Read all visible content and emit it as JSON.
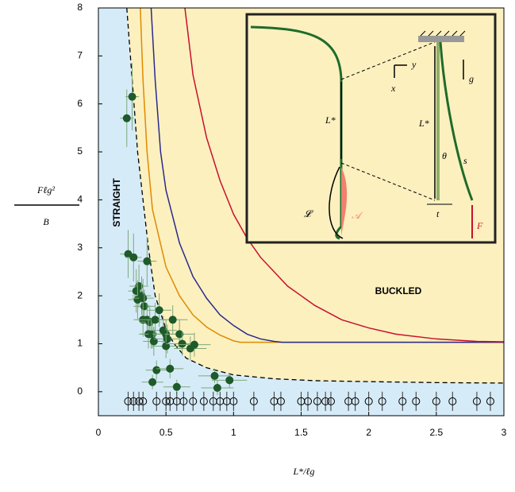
{
  "chart_data": {
    "type": "scatter",
    "xlabel": "L*/ℓg",
    "ylabel": [
      "Fℓg²",
      "B"
    ],
    "xlim": [
      0,
      3
    ],
    "ylim": [
      -0.5,
      8
    ],
    "xticks": [
      0,
      0.5,
      1,
      1.5,
      2,
      2.5,
      3
    ],
    "yticks": [
      0,
      1,
      2,
      3,
      4,
      5,
      6,
      7,
      8
    ],
    "annotations": [
      "STRAIGHT",
      "BUCKLED"
    ],
    "inset_labels": {
      "y": "y",
      "x": "x",
      "g": "g",
      "L1": "L*",
      "L2": "L*",
      "theta": "θ",
      "s": "s",
      "t": "t",
      "F": "F",
      "curly_L": "𝓛",
      "curly_A": "𝒜"
    },
    "region_colors": {
      "straight": "#d6ebf8",
      "buckled": "#fcf0bf"
    },
    "boundary": {
      "color": "#000000",
      "x": [
        0.21,
        0.25,
        0.29,
        0.33,
        0.37,
        0.42,
        0.5,
        0.56,
        0.65,
        0.8,
        1,
        1.3,
        1.6,
        2,
        2.5,
        3
      ],
      "y": [
        8,
        6.5,
        5,
        4,
        3,
        2,
        1.3,
        1,
        0.7,
        0.5,
        0.35,
        0.27,
        0.23,
        0.21,
        0.19,
        0.18
      ]
    },
    "curves": [
      {
        "color": "#e08a00",
        "x": [
          0.31,
          0.33,
          0.36,
          0.4,
          0.5,
          0.6,
          0.7,
          0.8,
          0.9,
          1,
          1.05,
          3
        ],
        "y": [
          8,
          6.5,
          5,
          3.8,
          2.6,
          2,
          1.6,
          1.35,
          1.18,
          1.06,
          1.03,
          1.03
        ]
      },
      {
        "color": "#2a2a8c",
        "x": [
          0.39,
          0.42,
          0.46,
          0.5,
          0.6,
          0.7,
          0.8,
          0.9,
          1,
          1.1,
          1.2,
          1.3,
          1.36,
          3
        ],
        "y": [
          8,
          6.5,
          5,
          4.2,
          3.1,
          2.4,
          1.95,
          1.6,
          1.38,
          1.2,
          1.1,
          1.05,
          1.03,
          1.03
        ]
      },
      {
        "color": "#c8102e",
        "x": [
          0.64,
          0.7,
          0.8,
          0.9,
          1,
          1.1,
          1.2,
          1.4,
          1.6,
          1.8,
          2,
          2.2,
          2.5,
          2.8,
          3
        ],
        "y": [
          8,
          6.6,
          5.3,
          4.4,
          3.7,
          3.2,
          2.8,
          2.2,
          1.8,
          1.5,
          1.33,
          1.2,
          1.1,
          1.05,
          1.04
        ]
      }
    ],
    "series": [
      {
        "color": "#1e5a2a",
        "filled": true,
        "x": [
          0.21,
          0.25,
          0.22,
          0.26,
          0.36,
          0.3,
          0.28,
          0.29,
          0.32,
          0.33,
          0.34,
          0.33,
          0.36,
          0.38,
          0.39,
          0.37,
          0.4,
          0.41,
          0.45,
          0.42,
          0.48,
          0.5,
          0.51,
          0.5,
          0.55,
          0.6,
          0.62,
          0.68,
          0.71,
          0.43,
          0.53,
          0.58,
          0.4,
          0.86,
          0.88,
          0.97
        ],
        "y": [
          5.7,
          6.15,
          2.87,
          2.8,
          2.72,
          2.2,
          2.1,
          1.92,
          2.0,
          1.95,
          1.78,
          1.5,
          1.5,
          1.45,
          1.2,
          1.2,
          1.2,
          1.05,
          1.7,
          1.5,
          1.28,
          1.2,
          1.1,
          0.95,
          1.5,
          1.2,
          1.0,
          0.9,
          0.98,
          0.45,
          0.48,
          0.1,
          0.2,
          0.33,
          0.08,
          0.24
        ],
        "xerr": [
          0.05,
          0.05,
          0.06,
          0.06,
          0.07,
          0.07,
          0.06,
          0.07,
          0.07,
          0.08,
          0.08,
          0.07,
          0.08,
          0.08,
          0.08,
          0.07,
          0.09,
          0.08,
          0.09,
          0.09,
          0.1,
          0.1,
          0.1,
          0.1,
          0.11,
          0.11,
          0.12,
          0.12,
          0.12,
          0.08,
          0.1,
          0.1,
          0.08,
          0.12,
          0.12,
          0.13
        ],
        "yerr": [
          0.6,
          0.7,
          0.5,
          0.5,
          0.5,
          0.45,
          0.45,
          0.4,
          0.4,
          0.4,
          0.35,
          0.35,
          0.35,
          0.35,
          0.3,
          0.3,
          0.3,
          0.3,
          0.35,
          0.35,
          0.3,
          0.3,
          0.3,
          0.25,
          0.3,
          0.3,
          0.25,
          0.25,
          0.25,
          0.2,
          0.2,
          0.15,
          0.15,
          0.15,
          0.15,
          0.15
        ]
      },
      {
        "color": "#000000",
        "filled": false,
        "x": [
          0.22,
          0.26,
          0.3,
          0.33,
          0.43,
          0.5,
          0.53,
          0.58,
          0.63,
          0.7,
          0.78,
          0.85,
          0.9,
          0.95,
          1.0,
          1.15,
          1.3,
          1.35,
          1.5,
          1.55,
          1.62,
          1.68,
          1.72,
          1.85,
          1.9,
          2.0,
          2.1,
          2.25,
          2.35,
          2.5,
          2.62,
          2.8,
          2.9
        ],
        "y": [
          -0.2,
          -0.2,
          -0.2,
          -0.2,
          -0.2,
          -0.2,
          -0.2,
          -0.2,
          -0.2,
          -0.2,
          -0.2,
          -0.2,
          -0.2,
          -0.2,
          -0.2,
          -0.2,
          -0.2,
          -0.2,
          -0.2,
          -0.2,
          -0.2,
          -0.2,
          -0.2,
          -0.2,
          -0.2,
          -0.2,
          -0.2,
          -0.2,
          -0.2,
          -0.2,
          -0.2,
          -0.2,
          -0.2
        ],
        "yerr": [
          0.2,
          0.2,
          0.2,
          0.2,
          0.2,
          0.2,
          0.2,
          0.2,
          0.2,
          0.2,
          0.2,
          0.2,
          0.2,
          0.2,
          0.2,
          0.2,
          0.2,
          0.2,
          0.2,
          0.2,
          0.2,
          0.2,
          0.2,
          0.2,
          0.2,
          0.2,
          0.2,
          0.2,
          0.2,
          0.2,
          0.2,
          0.2,
          0.2
        ]
      }
    ]
  }
}
